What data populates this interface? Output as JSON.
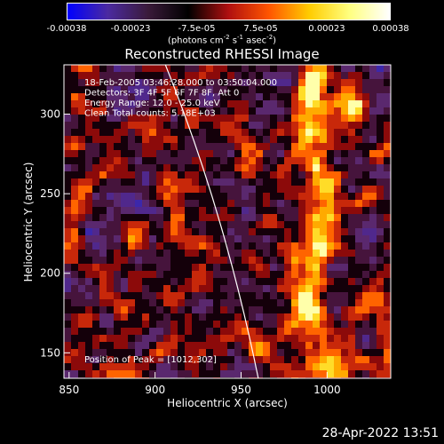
{
  "colorbar": {
    "tick_labels": [
      "-0.00038",
      "-0.00023",
      "-7.5e-05",
      "7.5e-05",
      "0.00023",
      "0.00038"
    ],
    "tick_values": [
      -0.00038,
      -0.00023,
      -7.5e-05,
      7.5e-05,
      0.00023,
      0.00038
    ],
    "range": [
      -0.00038,
      0.00038
    ],
    "units_base": "(photons cm",
    "units_exp1": "-2",
    "units_mid": " s",
    "units_exp2": "-1",
    "units_mid2": " asec",
    "units_exp3": "-2",
    "units_end": ")",
    "colors": [
      "#0000ff",
      "#4b2aa0",
      "#3a1a3a",
      "#000000",
      "#b01010",
      "#ff5500",
      "#ffcc00",
      "#ffff80",
      "#ffffff"
    ]
  },
  "chart_data": {
    "type": "heatmap",
    "title": "Reconstructed RHESSI Image",
    "xlabel": "Heliocentric X (arcsec)",
    "ylabel": "Heliocentric Y (arcsec)",
    "xlim": [
      847,
      1037
    ],
    "ylim": [
      134,
      331
    ],
    "x_ticks": [
      850,
      900,
      950,
      1000
    ],
    "y_ticks": [
      150,
      200,
      250,
      300
    ],
    "annotations": [
      "18-Feb-2005 03:46:28.000 to 03:50:04.000",
      "Detectors: 3F 4F 5F 6F 7F 8F, Att 0",
      "Energy Range: 12.0 - 25.0 keV",
      "Clean    Total counts: 5.18E+03"
    ],
    "peak_label": "Position of Peak = [1012,302]",
    "peak": [
      1012,
      302
    ],
    "limb_color": "#ffffff"
  },
  "footer": {
    "date": "28-Apr-2022 13:51"
  }
}
